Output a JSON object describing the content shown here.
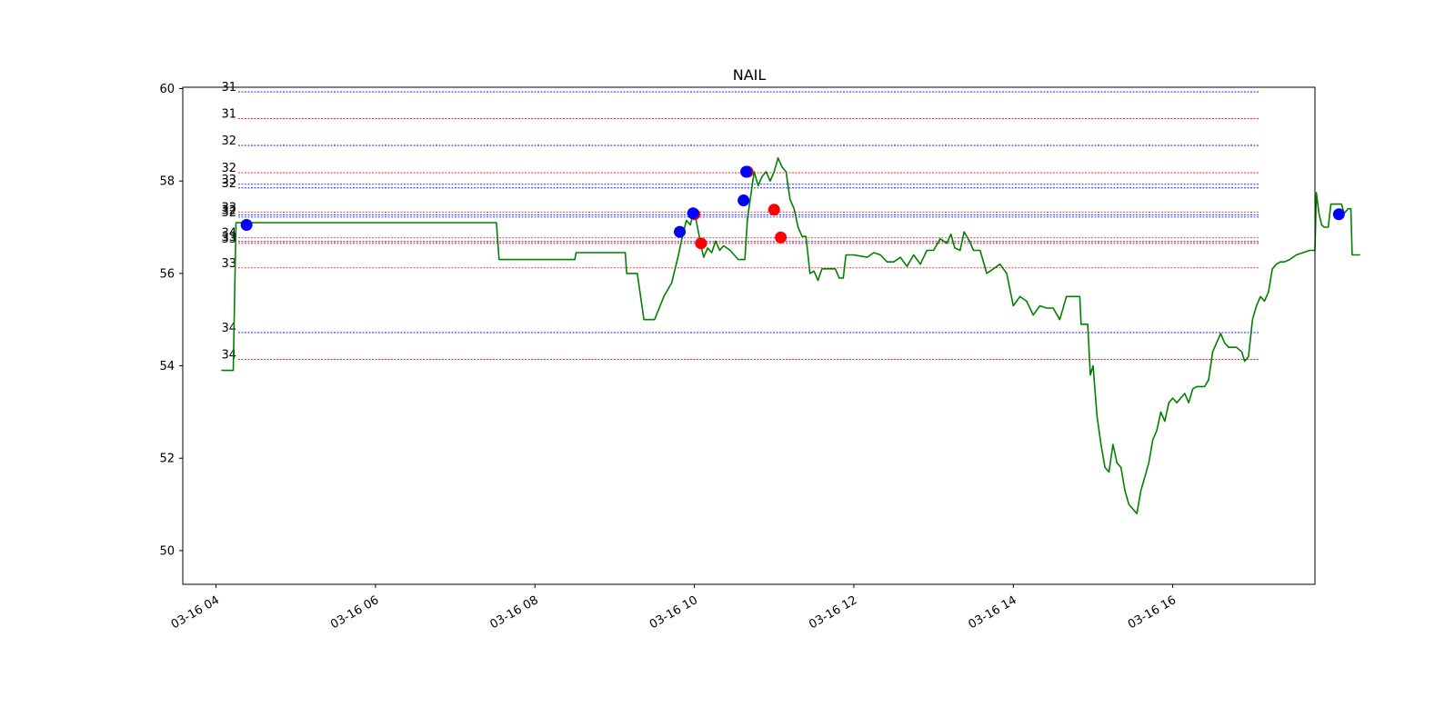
{
  "chart_data": {
    "type": "line",
    "title": "NAIL",
    "xlabel": "",
    "ylabel": "",
    "x_tick_labels": [
      "03-16 04",
      "03-16 06",
      "03-16 08",
      "03-16 10",
      "03-16 12",
      "03-16 14",
      "03-16 16"
    ],
    "x_ticks": [
      "2020-03-16 04:00",
      "2020-03-16 06:00",
      "2020-03-16 08:00",
      "2020-03-16 10:00",
      "2020-03-16 12:00",
      "2020-03-16 14:00",
      "2020-03-16 16:00"
    ],
    "xlim": [
      "2020-03-16 03:35",
      "2020-03-16 17:47"
    ],
    "y_ticks": [
      50,
      52,
      54,
      56,
      58,
      60
    ],
    "ylim": [
      49.27,
      60.03
    ],
    "grid": false,
    "colors": {
      "price_line": "#008000",
      "buy_marker": "#0000ff",
      "sell_marker": "#ff0000",
      "blue_level": "#0000ff",
      "red_level": "#ff0000"
    },
    "series": [
      {
        "values": [
          [
            "2020-03-16 04:04",
            53.9
          ],
          [
            "2020-03-16 04:13",
            53.9
          ],
          [
            "2020-03-16 04:15",
            57.1
          ],
          [
            "2020-03-16 07:31",
            57.1
          ],
          [
            "2020-03-16 07:33",
            56.3
          ],
          [
            "2020-03-16 08:30",
            56.3
          ],
          [
            "2020-03-16 08:31",
            56.45
          ],
          [
            "2020-03-16 09:08",
            56.45
          ],
          [
            "2020-03-16 09:09",
            56.0
          ],
          [
            "2020-03-16 09:17",
            56.0
          ],
          [
            "2020-03-16 09:22",
            55.0
          ],
          [
            "2020-03-16 09:30",
            55.0
          ],
          [
            "2020-03-16 09:37",
            55.5
          ],
          [
            "2020-03-16 09:43",
            55.8
          ],
          [
            "2020-03-16 09:48",
            56.4
          ],
          [
            "2020-03-16 09:51",
            56.8
          ],
          [
            "2020-03-16 09:54",
            57.15
          ],
          [
            "2020-03-16 09:57",
            57.05
          ],
          [
            "2020-03-16 09:59",
            57.3
          ],
          [
            "2020-03-16 10:01",
            57.2
          ],
          [
            "2020-03-16 10:03",
            56.9
          ],
          [
            "2020-03-16 10:05",
            56.6
          ],
          [
            "2020-03-16 10:07",
            56.35
          ],
          [
            "2020-03-16 10:10",
            56.55
          ],
          [
            "2020-03-16 10:13",
            56.45
          ],
          [
            "2020-03-16 10:16",
            56.7
          ],
          [
            "2020-03-16 10:19",
            56.5
          ],
          [
            "2020-03-16 10:22",
            56.6
          ],
          [
            "2020-03-16 10:27",
            56.5
          ],
          [
            "2020-03-16 10:33",
            56.3
          ],
          [
            "2020-03-16 10:38",
            56.3
          ],
          [
            "2020-03-16 10:40",
            57.2
          ],
          [
            "2020-03-16 10:42",
            57.6
          ],
          [
            "2020-03-16 10:45",
            58.2
          ],
          [
            "2020-03-16 10:48",
            57.9
          ],
          [
            "2020-03-16 10:51",
            58.1
          ],
          [
            "2020-03-16 10:54",
            58.2
          ],
          [
            "2020-03-16 10:57",
            58.0
          ],
          [
            "2020-03-16 11:00",
            58.2
          ],
          [
            "2020-03-16 11:03",
            58.5
          ],
          [
            "2020-03-16 11:06",
            58.3
          ],
          [
            "2020-03-16 11:09",
            58.2
          ],
          [
            "2020-03-16 11:12",
            57.6
          ],
          [
            "2020-03-16 11:15",
            57.4
          ],
          [
            "2020-03-16 11:18",
            57.0
          ],
          [
            "2020-03-16 11:21",
            56.8
          ],
          [
            "2020-03-16 11:24",
            56.8
          ],
          [
            "2020-03-16 11:27",
            56.0
          ],
          [
            "2020-03-16 11:30",
            56.05
          ],
          [
            "2020-03-16 11:33",
            55.85
          ],
          [
            "2020-03-16 11:36",
            56.1
          ],
          [
            "2020-03-16 11:40",
            56.1
          ],
          [
            "2020-03-16 11:46",
            56.1
          ],
          [
            "2020-03-16 11:49",
            55.9
          ],
          [
            "2020-03-16 11:52",
            55.9
          ],
          [
            "2020-03-16 11:54",
            56.4
          ],
          [
            "2020-03-16 12:00",
            56.4
          ],
          [
            "2020-03-16 12:10",
            56.35
          ],
          [
            "2020-03-16 12:15",
            56.45
          ],
          [
            "2020-03-16 12:20",
            56.4
          ],
          [
            "2020-03-16 12:25",
            56.25
          ],
          [
            "2020-03-16 12:30",
            56.25
          ],
          [
            "2020-03-16 12:35",
            56.35
          ],
          [
            "2020-03-16 12:40",
            56.15
          ],
          [
            "2020-03-16 12:45",
            56.4
          ],
          [
            "2020-03-16 12:50",
            56.2
          ],
          [
            "2020-03-16 12:55",
            56.5
          ],
          [
            "2020-03-16 13:00",
            56.5
          ],
          [
            "2020-03-16 13:05",
            56.75
          ],
          [
            "2020-03-16 13:10",
            56.65
          ],
          [
            "2020-03-16 13:13",
            56.85
          ],
          [
            "2020-03-16 13:16",
            56.55
          ],
          [
            "2020-03-16 13:20",
            56.5
          ],
          [
            "2020-03-16 13:23",
            56.9
          ],
          [
            "2020-03-16 13:27",
            56.7
          ],
          [
            "2020-03-16 13:30",
            56.5
          ],
          [
            "2020-03-16 13:35",
            56.5
          ],
          [
            "2020-03-16 13:40",
            56.0
          ],
          [
            "2020-03-16 13:45",
            56.1
          ],
          [
            "2020-03-16 13:50",
            56.2
          ],
          [
            "2020-03-16 13:55",
            56.0
          ],
          [
            "2020-03-16 14:00",
            55.3
          ],
          [
            "2020-03-16 14:05",
            55.5
          ],
          [
            "2020-03-16 14:10",
            55.4
          ],
          [
            "2020-03-16 14:15",
            55.1
          ],
          [
            "2020-03-16 14:20",
            55.3
          ],
          [
            "2020-03-16 14:25",
            55.25
          ],
          [
            "2020-03-16 14:30",
            55.25
          ],
          [
            "2020-03-16 14:35",
            55.0
          ],
          [
            "2020-03-16 14:40",
            55.5
          ],
          [
            "2020-03-16 14:45",
            55.5
          ],
          [
            "2020-03-16 14:50",
            55.5
          ],
          [
            "2020-03-16 14:51",
            54.9
          ],
          [
            "2020-03-16 14:56",
            54.9
          ],
          [
            "2020-03-16 14:58",
            53.8
          ],
          [
            "2020-03-16 15:00",
            54.0
          ],
          [
            "2020-03-16 15:03",
            52.9
          ],
          [
            "2020-03-16 15:06",
            52.3
          ],
          [
            "2020-03-16 15:09",
            51.8
          ],
          [
            "2020-03-16 15:12",
            51.7
          ],
          [
            "2020-03-16 15:15",
            52.3
          ],
          [
            "2020-03-16 15:18",
            51.9
          ],
          [
            "2020-03-16 15:21",
            51.8
          ],
          [
            "2020-03-16 15:24",
            51.3
          ],
          [
            "2020-03-16 15:27",
            51.0
          ],
          [
            "2020-03-16 15:30",
            50.9
          ],
          [
            "2020-03-16 15:33",
            50.8
          ],
          [
            "2020-03-16 15:36",
            51.3
          ],
          [
            "2020-03-16 15:39",
            51.6
          ],
          [
            "2020-03-16 15:42",
            51.9
          ],
          [
            "2020-03-16 15:45",
            52.4
          ],
          [
            "2020-03-16 15:48",
            52.6
          ],
          [
            "2020-03-16 15:51",
            53.0
          ],
          [
            "2020-03-16 15:54",
            52.8
          ],
          [
            "2020-03-16 15:57",
            53.2
          ],
          [
            "2020-03-16 16:00",
            53.3
          ],
          [
            "2020-03-16 16:03",
            53.2
          ],
          [
            "2020-03-16 16:06",
            53.3
          ],
          [
            "2020-03-16 16:09",
            53.4
          ],
          [
            "2020-03-16 16:12",
            53.2
          ],
          [
            "2020-03-16 16:15",
            53.5
          ],
          [
            "2020-03-16 16:18",
            53.55
          ],
          [
            "2020-03-16 16:24",
            53.55
          ],
          [
            "2020-03-16 16:27",
            53.7
          ],
          [
            "2020-03-16 16:30",
            54.3
          ],
          [
            "2020-03-16 16:33",
            54.5
          ],
          [
            "2020-03-16 16:36",
            54.7
          ],
          [
            "2020-03-16 16:39",
            54.5
          ],
          [
            "2020-03-16 16:42",
            54.4
          ],
          [
            "2020-03-16 16:48",
            54.4
          ],
          [
            "2020-03-16 16:52",
            54.3
          ],
          [
            "2020-03-16 16:54",
            54.1
          ],
          [
            "2020-03-16 16:57",
            54.2
          ],
          [
            "2020-03-16 17:00",
            55.0
          ],
          [
            "2020-03-16 17:03",
            55.3
          ],
          [
            "2020-03-16 17:06",
            55.5
          ],
          [
            "2020-03-16 17:09",
            55.4
          ],
          [
            "2020-03-16 17:12",
            55.6
          ],
          [
            "2020-03-16 17:15",
            56.1
          ],
          [
            "2020-03-16 17:18",
            56.2
          ],
          [
            "2020-03-16 17:21",
            56.25
          ],
          [
            "2020-03-16 17:24",
            56.25
          ],
          [
            "2020-03-16 17:28",
            56.3
          ],
          [
            "2020-03-16 17:33",
            56.4
          ],
          [
            "2020-03-16 17:38",
            56.45
          ],
          [
            "2020-03-16 17:43",
            56.5
          ],
          [
            "2020-03-16 17:47",
            56.5
          ],
          [
            "2020-03-16 17:48",
            57.75
          ],
          [
            "2020-03-16 17:50",
            57.3
          ],
          [
            "2020-03-16 17:52",
            57.05
          ],
          [
            "2020-03-16 17:54",
            57.0
          ],
          [
            "2020-03-16 17:57",
            57.0
          ],
          [
            "2020-03-16 17:59",
            57.5
          ],
          [
            "2020-03-16 18:07",
            57.5
          ],
          [
            "2020-03-16 18:09",
            57.3
          ],
          [
            "2020-03-16 18:12",
            57.4
          ],
          [
            "2020-03-16 18:14",
            57.4
          ],
          [
            "2020-03-16 18:15",
            56.4
          ],
          [
            "2020-03-16 18:21",
            56.4
          ]
        ]
      }
    ],
    "buy_markers": [
      [
        "2020-03-16 04:23",
        57.05
      ],
      [
        "2020-03-16 09:49",
        56.9
      ],
      [
        "2020-03-16 09:59",
        57.3
      ],
      [
        "2020-03-16 10:37",
        57.58
      ],
      [
        "2020-03-16 10:39",
        58.2
      ],
      [
        "2020-03-16 18:05",
        57.28
      ]
    ],
    "sell_markers": [
      [
        "2020-03-16 10:00",
        57.28
      ],
      [
        "2020-03-16 10:05",
        56.65
      ],
      [
        "2020-03-16 10:40",
        58.2
      ],
      [
        "2020-03-16 11:00",
        57.38
      ],
      [
        "2020-03-16 11:05",
        56.78
      ]
    ],
    "levels": [
      {
        "label": "31",
        "y": 59.93,
        "color": "blue"
      },
      {
        "label": "31",
        "y": 59.35,
        "color": "red"
      },
      {
        "label": "32",
        "y": 58.77,
        "color": "blue"
      },
      {
        "label": "32",
        "y": 58.18,
        "color": "red"
      },
      {
        "label": "33",
        "y": 57.93,
        "color": "blue"
      },
      {
        "label": "32",
        "y": 57.85,
        "color": "blue"
      },
      {
        "label": "33",
        "y": 57.33,
        "color": "red"
      },
      {
        "label": "32",
        "y": 57.27,
        "color": "blue"
      },
      {
        "label": "32",
        "y": 57.22,
        "color": "blue"
      },
      {
        "label": "34",
        "y": 56.77,
        "color": "red"
      },
      {
        "label": "33",
        "y": 56.69,
        "color": "blue"
      },
      {
        "label": "33",
        "y": 56.65,
        "color": "red"
      },
      {
        "label": "33",
        "y": 56.12,
        "color": "red"
      },
      {
        "label": "34",
        "y": 54.72,
        "color": "blue"
      },
      {
        "label": "34",
        "y": 54.14,
        "color": "red"
      }
    ]
  }
}
